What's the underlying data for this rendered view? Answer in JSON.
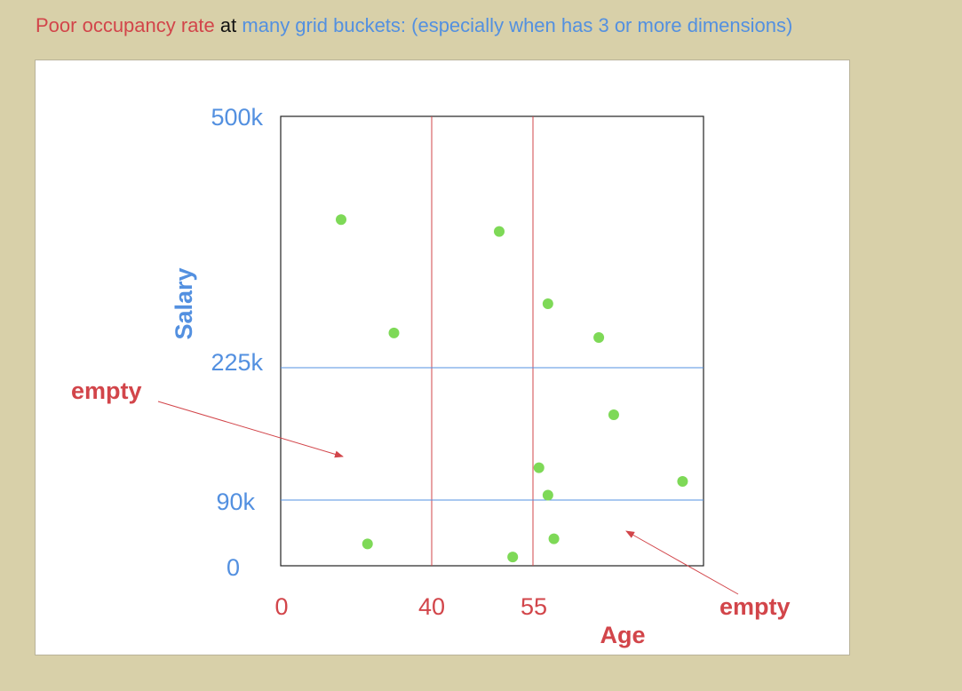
{
  "caption": {
    "part1": "Poor occupancy rate",
    "part2": "at",
    "part3": "many grid buckets: (especially when has 3 or more dimensions)"
  },
  "colors": {
    "red": "#d2454a",
    "blue": "#5390e0",
    "black": "#111111",
    "point": "#7ed957",
    "background": "#d8d0a9"
  },
  "axes": {
    "x_label": "Age",
    "y_label": "Salary",
    "x_ticks": [
      "0",
      "40",
      "55"
    ],
    "y_ticks": [
      "500k",
      "225k",
      "90k",
      "0"
    ]
  },
  "grid": {
    "x_splits": [
      40,
      55
    ],
    "y_splits": [
      90,
      225
    ]
  },
  "points": [
    {
      "age": 16,
      "salary": 387
    },
    {
      "age": 50,
      "salary": 374
    },
    {
      "age": 60,
      "salary": 295
    },
    {
      "age": 30,
      "salary": 263
    },
    {
      "age": 77,
      "salary": 258
    },
    {
      "age": 82,
      "salary": 177
    },
    {
      "age": 57,
      "salary": 123
    },
    {
      "age": 60,
      "salary": 95
    },
    {
      "age": 105,
      "salary": 109
    },
    {
      "age": 23,
      "salary": 30
    },
    {
      "age": 62,
      "salary": 37
    },
    {
      "age": 52,
      "salary": 12
    }
  ],
  "annotations": {
    "left": "empty",
    "right": "empty"
  }
}
